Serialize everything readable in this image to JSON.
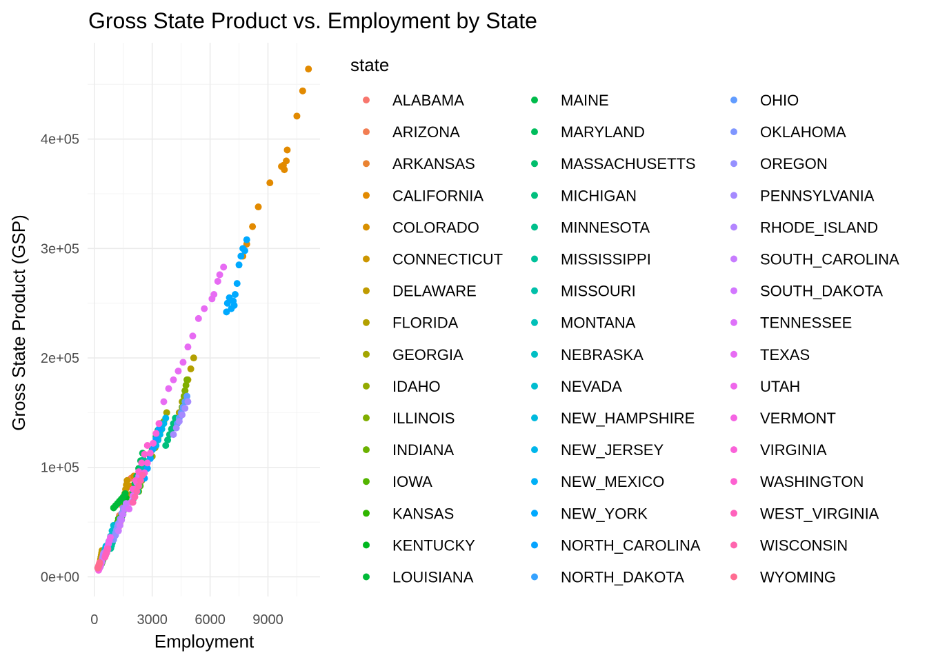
{
  "chart_data": {
    "type": "scatter",
    "title": "Gross State Product vs. Employment by State",
    "xlabel": "Employment",
    "ylabel": "Gross State Product (GSP)",
    "xlim": [
      -350,
      11700
    ],
    "ylim": [
      -18000,
      488000
    ],
    "x_ticks": [
      0,
      3000,
      6000,
      9000
    ],
    "x_tick_labels": [
      "0",
      "3000",
      "6000",
      "9000"
    ],
    "y_ticks": [
      0,
      100000,
      200000,
      300000,
      400000
    ],
    "y_tick_labels": [
      "0e+00",
      "1e+05",
      "2e+05",
      "3e+05",
      "4e+05"
    ],
    "grid": true,
    "legend": {
      "title": "state",
      "placement": "right",
      "columns": 3
    },
    "series": [
      {
        "name": "ALABAMA",
        "color": "#F8766D",
        "x": [
          1250,
          1330,
          1400,
          1480,
          1560,
          1620
        ],
        "y": [
          45000,
          49000,
          54000,
          58000,
          63000,
          67000
        ]
      },
      {
        "name": "ARIZONA",
        "color": "#F27D52",
        "x": [
          1150,
          1300,
          1450,
          1600,
          1750,
          1900
        ],
        "y": [
          48000,
          56000,
          65000,
          73000,
          82000,
          90000
        ]
      },
      {
        "name": "ARKANSAS",
        "color": "#EA8331",
        "x": [
          780,
          840,
          900,
          960,
          1020,
          1080
        ],
        "y": [
          27000,
          30000,
          33000,
          36000,
          39000,
          42000
        ]
      },
      {
        "name": "CALIFORNIA",
        "color": "#E28A00",
        "x": [
          7700,
          7900,
          8200,
          8500,
          9100,
          9700,
          9950,
          10000,
          10500,
          10800,
          11100,
          9800,
          9850
        ],
        "y": [
          293000,
          304000,
          320000,
          338000,
          360000,
          375000,
          380000,
          390000,
          421000,
          444000,
          464000,
          376000,
          372000
        ]
      },
      {
        "name": "COLORADO",
        "color": "#D89000",
        "x": [
          1300,
          1450,
          1600,
          1750,
          1900,
          2050
        ],
        "y": [
          50000,
          58000,
          66000,
          75000,
          83000,
          92000
        ]
      },
      {
        "name": "CONNECTICUT",
        "color": "#CC9600",
        "x": [
          1480,
          1530,
          1580,
          1620,
          1660,
          1700
        ],
        "y": [
          68000,
          72000,
          76000,
          80000,
          84000,
          88000
        ]
      },
      {
        "name": "DELAWARE",
        "color": "#C09B00",
        "x": [
          300,
          320,
          340,
          360,
          380,
          400
        ],
        "y": [
          14000,
          16000,
          18000,
          20000,
          22000,
          24000
        ]
      },
      {
        "name": "FLORIDA",
        "color": "#B3A000",
        "x": [
          4400,
          4550,
          4700,
          4850,
          5000,
          5150
        ],
        "y": [
          150000,
          160000,
          170000,
          180000,
          190000,
          200000
        ]
      },
      {
        "name": "GEORGIA",
        "color": "#A3A500",
        "x": [
          3000,
          3150,
          3300,
          3450,
          3600,
          3750
        ],
        "y": [
          110000,
          118000,
          126000,
          134000,
          142000,
          150000
        ]
      },
      {
        "name": "IDAHO",
        "color": "#93AA00",
        "x": [
          380,
          410,
          440,
          470,
          500,
          530
        ],
        "y": [
          12000,
          13500,
          15000,
          16500,
          18000,
          19500
        ]
      },
      {
        "name": "ILLINOIS",
        "color": "#80AE00",
        "x": [
          4550,
          4600,
          4650,
          4700,
          4750,
          4800
        ],
        "y": [
          155000,
          160000,
          165000,
          170000,
          175000,
          180000
        ]
      },
      {
        "name": "INDIANA",
        "color": "#6BB100",
        "x": [
          2300,
          2380,
          2460,
          2540,
          2620,
          2700
        ],
        "y": [
          78000,
          83000,
          88000,
          93000,
          98000,
          103000
        ]
      },
      {
        "name": "IOWA",
        "color": "#53B400",
        "x": [
          1150,
          1200,
          1250,
          1300,
          1350,
          1400
        ],
        "y": [
          42000,
          45000,
          48000,
          51000,
          54000,
          57000
        ]
      },
      {
        "name": "KANSAS",
        "color": "#2FB600",
        "x": [
          1050,
          1090,
          1130,
          1170,
          1210,
          1250
        ],
        "y": [
          38000,
          41000,
          44000,
          47000,
          50000,
          53000
        ]
      },
      {
        "name": "KENTUCKY",
        "color": "#00B81F",
        "x": [
          1400,
          1450,
          1500,
          1550,
          1600,
          1650
        ],
        "y": [
          52000,
          56000,
          60000,
          64000,
          68000,
          72000
        ]
      },
      {
        "name": "LOUISIANA",
        "color": "#00BA38",
        "x": [
          1000,
          1100,
          1200,
          1300,
          1400,
          1500,
          1600
        ],
        "y": [
          63000,
          65000,
          67000,
          69000,
          71000,
          73000,
          76000
        ]
      },
      {
        "name": "MAINE",
        "color": "#00BB4B",
        "x": [
          480,
          500,
          520,
          540,
          560,
          580
        ],
        "y": [
          17000,
          18500,
          20000,
          21500,
          23000,
          24500
        ]
      },
      {
        "name": "MARYLAND",
        "color": "#00BD5C",
        "x": [
          2000,
          2100,
          2200,
          2300,
          2400,
          2500
        ],
        "y": [
          78000,
          85000,
          92000,
          99000,
          106000,
          113000
        ]
      },
      {
        "name": "MASSACHUSETTS",
        "color": "#00BE6C",
        "x": [
          2900,
          3000,
          3100,
          3200,
          3300,
          3400
        ],
        "y": [
          110000,
          116000,
          122000,
          128000,
          134000,
          140000
        ]
      },
      {
        "name": "MICHIGAN",
        "color": "#00BF7D",
        "x": [
          3700,
          3800,
          3900,
          4000,
          4100,
          4200
        ],
        "y": [
          120000,
          125000,
          130000,
          135000,
          140000,
          145000
        ]
      },
      {
        "name": "MINNESOTA",
        "color": "#00C08B",
        "x": [
          2050,
          2150,
          2250,
          2350,
          2450,
          2550
        ],
        "y": [
          72000,
          79000,
          86000,
          93000,
          100000,
          107000
        ]
      },
      {
        "name": "MISSISSIPPI",
        "color": "#00C19A",
        "x": [
          850,
          890,
          930,
          970,
          1010,
          1050
        ],
        "y": [
          26000,
          28500,
          31000,
          33500,
          36000,
          38500
        ]
      },
      {
        "name": "MISSOURI",
        "color": "#00C0A9",
        "x": [
          2250,
          2320,
          2390,
          2460,
          2530,
          2600
        ],
        "y": [
          78000,
          83000,
          88000,
          93000,
          98000,
          103000
        ]
      },
      {
        "name": "MONTANA",
        "color": "#00C0B8",
        "x": [
          300,
          320,
          340,
          360,
          380,
          400
        ],
        "y": [
          9000,
          10000,
          11000,
          12000,
          13000,
          14000
        ]
      },
      {
        "name": "NEBRASKA",
        "color": "#00BFC4",
        "x": [
          640,
          670,
          700,
          730,
          760,
          790
        ],
        "y": [
          22000,
          24000,
          26000,
          28000,
          30000,
          32000
        ]
      },
      {
        "name": "NEVADA",
        "color": "#00BDD0",
        "x": [
          600,
          680,
          760,
          840,
          920,
          1000
        ],
        "y": [
          22000,
          27000,
          32000,
          37000,
          42000,
          47000
        ]
      },
      {
        "name": "NEW_HAMPSHIRE",
        "color": "#00BADE",
        "x": [
          450,
          480,
          510,
          540,
          570,
          600
        ],
        "y": [
          18000,
          20000,
          22000,
          24000,
          26000,
          28000
        ]
      },
      {
        "name": "NEW_JERSEY",
        "color": "#00B6EB",
        "x": [
          3200,
          3300,
          3400,
          3500,
          3600,
          3700
        ],
        "y": [
          120000,
          125000,
          130000,
          135000,
          140000,
          145000
        ]
      },
      {
        "name": "NEW_MEXICO",
        "color": "#00B0F6",
        "x": [
          560,
          600,
          640,
          680,
          720,
          760
        ],
        "y": [
          20000,
          22500,
          25000,
          27500,
          30000,
          32500
        ]
      },
      {
        "name": "NEW_YORK",
        "color": "#00A9FF",
        "x": [
          6850,
          6900,
          7000,
          7100,
          7200,
          7250,
          7300,
          7400,
          7500,
          7600,
          7700,
          7800,
          7900
        ],
        "y": [
          242000,
          250000,
          255000,
          245000,
          252000,
          248000,
          258000,
          268000,
          285000,
          293000,
          300000,
          298000,
          308000
        ]
      },
      {
        "name": "NORTH_CAROLINA",
        "color": "#06A4FF",
        "x": [
          2600,
          2750,
          2900,
          3050,
          3200,
          3350
        ],
        "y": [
          90000,
          99000,
          108000,
          117000,
          126000,
          135000
        ]
      },
      {
        "name": "NORTH_DAKOTA",
        "color": "#35A2FF",
        "x": [
          250,
          270,
          290,
          310,
          330,
          350
        ],
        "y": [
          8000,
          9000,
          10000,
          11000,
          12000,
          13000
        ]
      },
      {
        "name": "OHIO",
        "color": "#619CFF",
        "x": [
          4300,
          4400,
          4500,
          4600,
          4700,
          4800
        ],
        "y": [
          140000,
          145000,
          150000,
          155000,
          160000,
          165000
        ]
      },
      {
        "name": "OKLAHOMA",
        "color": "#7F96FF",
        "x": [
          1000,
          1050,
          1100,
          1150,
          1200,
          1250
        ],
        "y": [
          34000,
          37000,
          40000,
          43000,
          46000,
          49000
        ]
      },
      {
        "name": "OREGON",
        "color": "#9590FF",
        "x": [
          1100,
          1180,
          1260,
          1340,
          1420,
          1500
        ],
        "y": [
          38000,
          43000,
          48000,
          53000,
          58000,
          63000
        ]
      },
      {
        "name": "PENNSYLVANIA",
        "color": "#A58AFF",
        "x": [
          4100,
          4250,
          4400,
          4550,
          4700,
          4850
        ],
        "y": [
          130000,
          136000,
          142000,
          148000,
          154000,
          160000
        ]
      },
      {
        "name": "RHODE_ISLAND",
        "color": "#B385FF",
        "x": [
          380,
          400,
          420,
          440,
          460,
          480
        ],
        "y": [
          14000,
          15500,
          17000,
          18500,
          20000,
          21500
        ]
      },
      {
        "name": "SOUTH_CAROLINA",
        "color": "#C77CFF",
        "x": [
          1250,
          1330,
          1410,
          1490,
          1570,
          1650
        ],
        "y": [
          42000,
          47000,
          52000,
          57000,
          62000,
          67000
        ]
      },
      {
        "name": "SOUTH_DAKOTA",
        "color": "#D376FF",
        "x": [
          280,
          300,
          320,
          340,
          360,
          380
        ],
        "y": [
          8500,
          9500,
          10500,
          11500,
          12500,
          13500
        ]
      },
      {
        "name": "TENNESSEE",
        "color": "#DE71F9",
        "x": [
          1800,
          1900,
          2000,
          2100,
          2200,
          2300
        ],
        "y": [
          62000,
          68000,
          74000,
          80000,
          86000,
          92000
        ]
      },
      {
        "name": "TEXAS",
        "color": "#E76BF3",
        "x": [
          3600,
          3850,
          4100,
          4350,
          4600,
          4850,
          5100,
          5400,
          5700,
          6100,
          6200,
          6400,
          6500,
          6700
        ],
        "y": [
          160000,
          172000,
          180000,
          188000,
          196000,
          210000,
          220000,
          236000,
          245000,
          254000,
          258000,
          270000,
          276000,
          283000
        ]
      },
      {
        "name": "UTAH",
        "color": "#EF67EB",
        "x": [
          580,
          630,
          680,
          730,
          780,
          830
        ],
        "y": [
          21000,
          24000,
          27000,
          30000,
          33000,
          36000
        ]
      },
      {
        "name": "VERMONT",
        "color": "#F564E3",
        "x": [
          220,
          240,
          260,
          280,
          300,
          320
        ],
        "y": [
          6000,
          7000,
          8000,
          9000,
          10000,
          11000
        ]
      },
      {
        "name": "VIRGINIA",
        "color": "#FA62D9",
        "x": [
          2600,
          2750,
          2900,
          3050,
          3200,
          3350
        ],
        "y": [
          95000,
          104000,
          113000,
          122000,
          131000,
          140000
        ]
      },
      {
        "name": "WASHINGTON",
        "color": "#FD61D1",
        "x": [
          2000,
          2150,
          2300,
          2450,
          2600,
          2750
        ],
        "y": [
          80000,
          88000,
          96000,
          104000,
          112000,
          120000
        ]
      },
      {
        "name": "WEST_VIRGINIA",
        "color": "#FF62BC",
        "x": [
          550,
          580,
          610,
          640,
          670,
          700
        ],
        "y": [
          18000,
          19500,
          21000,
          22500,
          24000,
          25500
        ]
      },
      {
        "name": "WISCONSIN",
        "color": "#FF65AE",
        "x": [
          2000,
          2100,
          2200,
          2300,
          2400,
          2500
        ],
        "y": [
          68000,
          73000,
          78000,
          83000,
          88000,
          93000
        ]
      },
      {
        "name": "WYOMING",
        "color": "#FF6C91",
        "x": [
          180,
          200,
          220,
          240,
          260,
          280
        ],
        "y": [
          8000,
          9000,
          10000,
          11000,
          12000,
          13000
        ]
      }
    ]
  }
}
